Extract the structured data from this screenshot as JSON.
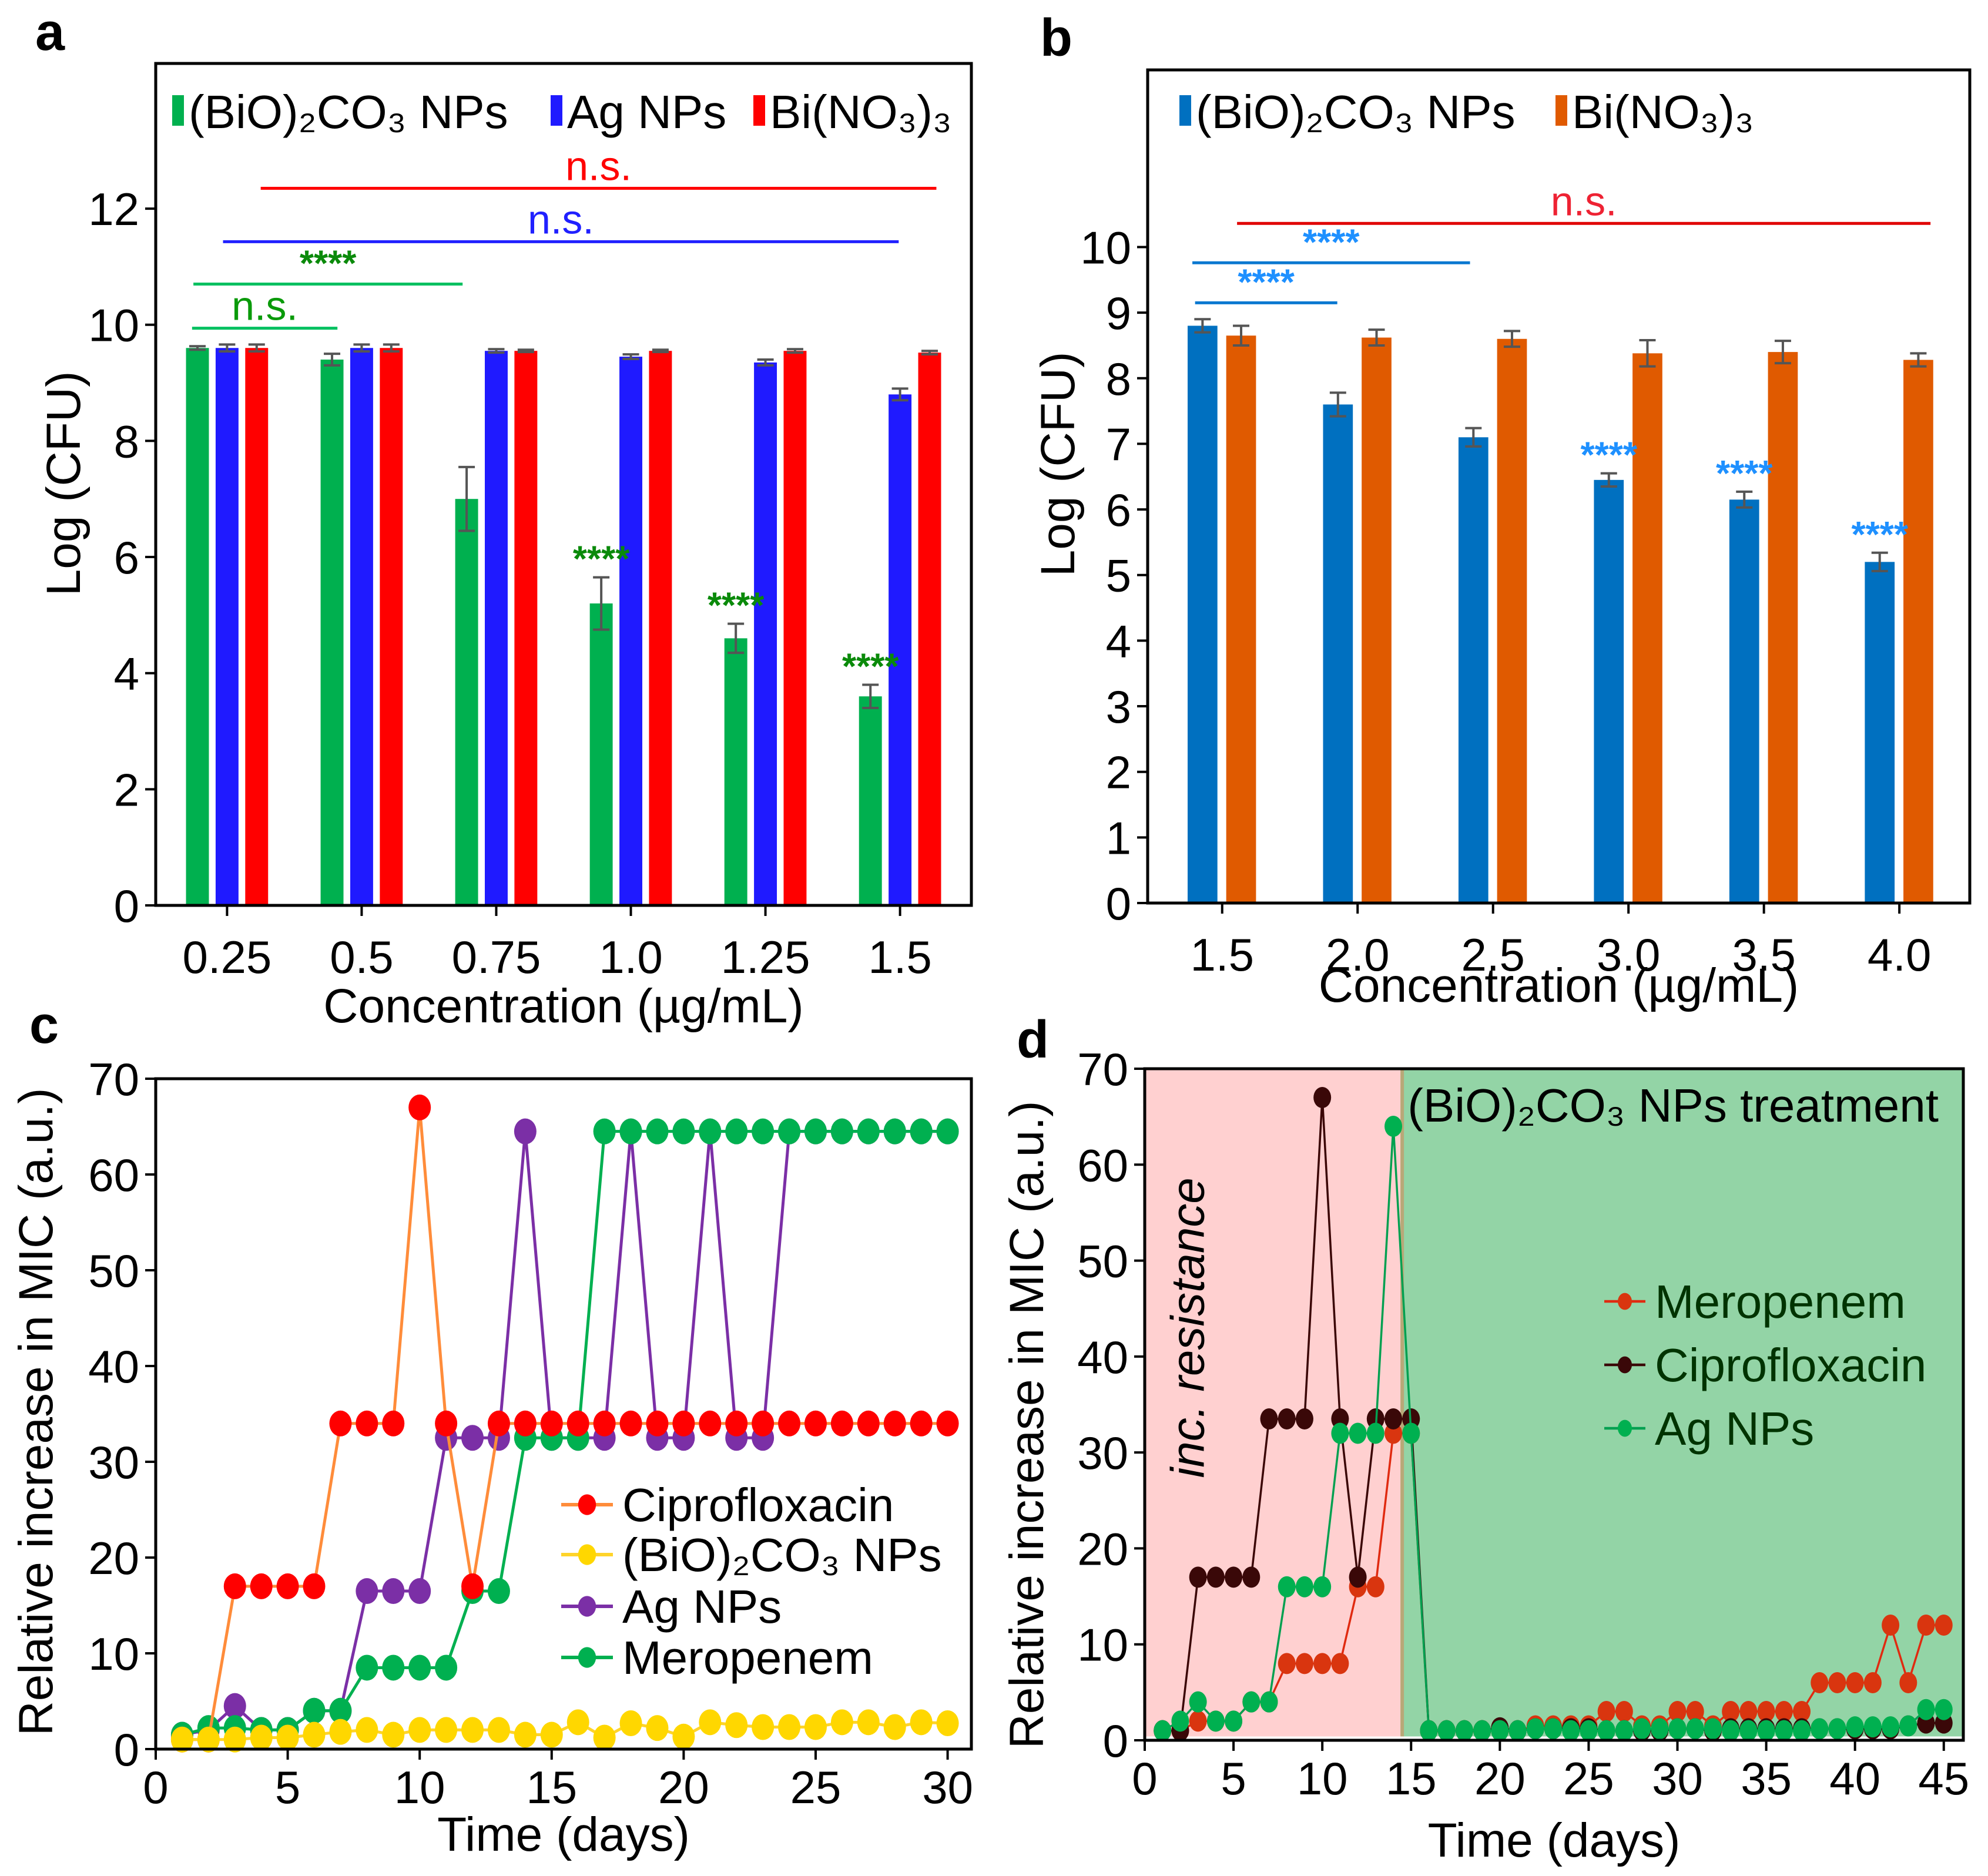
{
  "chart_data": [
    {
      "panel_label": "a",
      "type": "bar",
      "xlabel": "Concentration (µg/mL)",
      "ylabel": "Log (CFU)",
      "categories": [
        "0.25",
        "0.5",
        "0.75",
        "1.0",
        "1.25",
        "1.5"
      ],
      "ylim": [
        0,
        14.5
      ],
      "yticks": [
        0,
        2,
        4,
        6,
        8,
        10,
        12
      ],
      "series": [
        {
          "name": "(BiO)₂CO₃ NPs",
          "color": "#00b04f",
          "values": [
            9.6,
            9.4,
            7.0,
            5.2,
            4.6,
            3.6
          ],
          "errors": [
            0.03,
            0.1,
            0.55,
            0.45,
            0.25,
            0.2
          ]
        },
        {
          "name": "Ag NPs",
          "color": "#1f1aff",
          "values": [
            9.6,
            9.6,
            9.55,
            9.45,
            9.35,
            8.8
          ],
          "errors": [
            0.06,
            0.06,
            0.03,
            0.04,
            0.05,
            0.1
          ]
        },
        {
          "name": "Bi(NO₃)₃",
          "color": "#ff0000",
          "values": [
            9.6,
            9.6,
            9.55,
            9.55,
            9.55,
            9.52
          ],
          "errors": [
            0.06,
            0.06,
            0.02,
            0.02,
            0.03,
            0.03
          ]
        }
      ],
      "significance": [
        {
          "text": "n.s.",
          "color": "#ff0000",
          "y": 12.35,
          "from": 0.25,
          "to": 5.27
        },
        {
          "text": "n.s.",
          "color": "#2020ff",
          "y": 11.43,
          "from": -0.03,
          "to": 4.99
        },
        {
          "text": "****",
          "color": "#0a8a0a",
          "line_color": "#00c060",
          "y": 10.7,
          "from": -0.25,
          "to": 1.75
        },
        {
          "text": "n.s.",
          "color": "#0a9a0a",
          "line_color": "#00c060",
          "y": 9.94,
          "from": -0.26,
          "to": 0.82
        }
      ],
      "bar_labels": [
        {
          "text": "****",
          "color": "#0a8a0a",
          "series": 0,
          "category": 3
        },
        {
          "text": "****",
          "color": "#0a8a0a",
          "series": 0,
          "category": 4
        },
        {
          "text": "****",
          "color": "#0a8a0a",
          "series": 0,
          "category": 5
        }
      ],
      "legend_placement": "top"
    },
    {
      "panel_label": "b",
      "type": "bar",
      "xlabel": "Concentration (µg/mL)",
      "ylabel": "Log (CFU)",
      "categories": [
        "1.5",
        "2.0",
        "2.5",
        "3.0",
        "3.5",
        "4.0"
      ],
      "ylim": [
        0,
        12.7
      ],
      "yticks": [
        0,
        1,
        2,
        3,
        4,
        5,
        6,
        7,
        8,
        9,
        10
      ],
      "series": [
        {
          "name": "(BiO)₂CO₃ NPs",
          "color": "#0070c0",
          "values": [
            8.8,
            7.6,
            7.1,
            6.45,
            6.15,
            5.2
          ],
          "errors": [
            0.1,
            0.18,
            0.14,
            0.1,
            0.12,
            0.14
          ]
        },
        {
          "name": "Bi(NO₃)₃",
          "color": "#e05a00",
          "values": [
            8.65,
            8.62,
            8.6,
            8.38,
            8.4,
            8.28
          ],
          "errors": [
            0.15,
            0.12,
            0.12,
            0.2,
            0.17,
            0.1
          ]
        }
      ],
      "significance": [
        {
          "text": "n.s.",
          "color": "#ee2233",
          "line_color": "#e00000",
          "y": 10.36,
          "from": 0.11,
          "to": 5.23
        },
        {
          "text": "****",
          "color": "#1e90ff",
          "line_color": "#0a78d0",
          "y": 9.76,
          "from": -0.22,
          "to": 1.83
        },
        {
          "text": "****",
          "color": "#1e90ff",
          "line_color": "#0a78d0",
          "y": 9.15,
          "from": -0.2,
          "to": 0.85
        }
      ],
      "bar_labels": [
        {
          "text": "****",
          "color": "#1e90ff",
          "series": 0,
          "category": 3
        },
        {
          "text": "****",
          "color": "#1e90ff",
          "series": 0,
          "category": 4
        },
        {
          "text": "****",
          "color": "#1e90ff",
          "series": 0,
          "category": 5
        }
      ],
      "legend_placement": "top-left"
    },
    {
      "panel_label": "c",
      "type": "line",
      "xlabel": "Time (days)",
      "ylabel": "Relative increase in MIC (a.u.)",
      "xlim": [
        0,
        30.9
      ],
      "ylim": [
        0,
        70
      ],
      "xticks": [
        0,
        5,
        10,
        15,
        20,
        25,
        30
      ],
      "yticks": [
        0,
        10,
        20,
        30,
        40,
        50,
        60,
        70
      ],
      "x": [
        1,
        2,
        3,
        4,
        5,
        6,
        7,
        8,
        9,
        10,
        11,
        12,
        13,
        14,
        15,
        16,
        17,
        18,
        19,
        20,
        21,
        22,
        23,
        24,
        25,
        26,
        27,
        28,
        29,
        30
      ],
      "series": [
        {
          "name": "Ag NPs",
          "line_color": "#7b2fa6",
          "marker_color": "#7b2fa6",
          "y": [
            1.5,
            2,
            4.5,
            2,
            2,
            4,
            4,
            16.5,
            16.5,
            16.5,
            32.5,
            32.5,
            32.5,
            64.5,
            32.5,
            32.5,
            32.5,
            64.5,
            32.5,
            32.5,
            64.5,
            32.5,
            32.5,
            64.5,
            64.5,
            64.5,
            64.5,
            64.5,
            64.5,
            64.5
          ]
        },
        {
          "name": "Meropenem",
          "line_color": "#00b050",
          "marker_color": "#00b050",
          "y": [
            1.5,
            2.2,
            2.2,
            2,
            2,
            4,
            4,
            8.5,
            8.5,
            8.5,
            8.5,
            16.5,
            16.5,
            32.5,
            32.5,
            32.5,
            64.5,
            64.5,
            64.5,
            64.5,
            64.5,
            64.5,
            64.5,
            64.5,
            64.5,
            64.5,
            64.5,
            64.5,
            64.5,
            64.5
          ]
        },
        {
          "name": "Ciprofloxacin",
          "line_color": "#ff8c3a",
          "marker_color": "#ff0000",
          "y": [
            1,
            1,
            17,
            17,
            17,
            17,
            34,
            34,
            34,
            67,
            34,
            17,
            34,
            34,
            34,
            34,
            34,
            34,
            34,
            34,
            34,
            34,
            34,
            34,
            34,
            34,
            34,
            34,
            34,
            34
          ]
        },
        {
          "name": "(BiO)₂CO₃ NPs",
          "line_color": "#ffd42a",
          "marker_color": "#ffd700",
          "y": [
            1,
            1,
            1,
            1.2,
            1.2,
            1.5,
            1.8,
            2,
            1.5,
            2,
            2,
            2,
            2,
            1.5,
            1.5,
            2.8,
            1.2,
            2.7,
            2.2,
            1.3,
            2.8,
            2.5,
            2.3,
            2.3,
            2.3,
            2.8,
            2.8,
            2.3,
            2.8,
            2.7
          ]
        }
      ],
      "legend_order": [
        "Ciprofloxacin",
        "(BiO)₂CO₃ NPs",
        "Ag NPs",
        "Meropenem"
      ],
      "legend_placement": "center-right"
    },
    {
      "panel_label": "d",
      "type": "line",
      "xlabel": "Time (days)",
      "ylabel": "Relative increase in MIC (a.u.)",
      "xlim": [
        0,
        46.1
      ],
      "ylim": [
        0,
        70
      ],
      "xticks": [
        0,
        5,
        10,
        15,
        20,
        25,
        30,
        35,
        40,
        45
      ],
      "yticks": [
        0,
        10,
        20,
        30,
        40,
        50,
        60,
        70
      ],
      "regions": [
        {
          "label": "inc. resistance",
          "from": 0,
          "to": 14.5,
          "color": "#ffd0d0"
        },
        {
          "label": "(BiO)₂CO₃ NPs treatment",
          "from": 14.5,
          "to": 46.1,
          "color": "#93d4a6"
        }
      ],
      "x": [
        1,
        2,
        3,
        4,
        5,
        6,
        7,
        8,
        9,
        10,
        11,
        12,
        13,
        14,
        15,
        16,
        17,
        18,
        19,
        20,
        21,
        22,
        23,
        24,
        25,
        26,
        27,
        28,
        29,
        30,
        31,
        32,
        33,
        34,
        35,
        36,
        37,
        38,
        39,
        40,
        41,
        42,
        43,
        44,
        45
      ],
      "series": [
        {
          "name": "Meropenem",
          "line_color": "#e02a10",
          "marker_color": "#d9350f",
          "y": [
            1,
            1,
            2,
            2,
            2,
            4,
            4,
            8,
            8,
            8,
            8,
            16,
            16,
            32,
            32,
            1,
            1,
            1,
            1,
            1,
            1,
            1.5,
            1.5,
            1.5,
            1.5,
            3,
            3,
            1.5,
            1.5,
            3,
            3,
            1.5,
            3,
            3,
            3,
            3,
            3,
            6,
            6,
            6,
            6,
            12,
            6,
            12,
            12
          ]
        },
        {
          "name": "Ciprofloxacin",
          "line_color": "#3a0505",
          "marker_color": "#3a0808",
          "y": [
            1,
            1,
            17,
            17,
            17,
            17,
            33.5,
            33.5,
            33.5,
            67,
            33.5,
            17,
            33.5,
            33.5,
            33.5,
            1,
            1,
            1,
            1,
            1.3,
            1,
            1.2,
            1.2,
            1.2,
            1.2,
            1,
            1,
            1,
            1,
            1.2,
            1.2,
            1,
            1.2,
            1.2,
            1.2,
            1.2,
            1.2,
            1.2,
            1.2,
            1.2,
            1.2,
            1.2,
            1.5,
            1.8,
            1.8
          ]
        },
        {
          "name": "Ag NPs",
          "line_color": "#00a050",
          "marker_color": "#00b050",
          "y": [
            1,
            2,
            4,
            2,
            2,
            4,
            4,
            16,
            16,
            16,
            32,
            32,
            32,
            64,
            32,
            1,
            1,
            1,
            1,
            1,
            1,
            1.2,
            1.2,
            1,
            1,
            1,
            1,
            1.2,
            1.2,
            1.2,
            1.2,
            1.2,
            1,
            1,
            1,
            1,
            1,
            1.2,
            1.2,
            1.4,
            1.4,
            1.4,
            1.5,
            3.2,
            3.2
          ]
        }
      ],
      "legend_order": [
        "Meropenem",
        "Ciprofloxacin",
        "Ag NPs"
      ],
      "legend_text_color": "#003300",
      "legend_placement": "center-right"
    }
  ]
}
